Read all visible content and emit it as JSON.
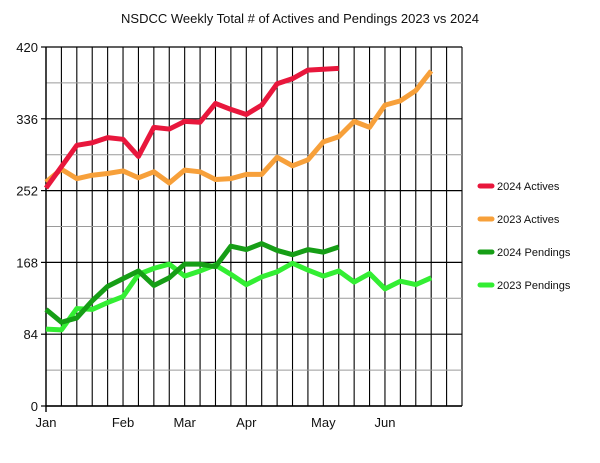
{
  "chart_data": {
    "type": "line",
    "title": "NSDCC Weekly Total # of Actives and Pendings 2023 vs 2024",
    "xlabel": "",
    "ylabel": "",
    "ylim": [
      0,
      420
    ],
    "yticks": [
      0,
      84,
      168,
      252,
      336,
      420
    ],
    "x_weeks": 27,
    "month_labels": [
      {
        "label": "Jan",
        "week": 0
      },
      {
        "label": "Feb",
        "week": 5
      },
      {
        "label": "Mar",
        "week": 9
      },
      {
        "label": "Apr",
        "week": 13
      },
      {
        "label": "May",
        "week": 18
      },
      {
        "label": "Jun",
        "week": 22
      }
    ],
    "grid": true,
    "legend_position": "right",
    "series": [
      {
        "name": "2024 Actives",
        "color": "#e8173c",
        "values": [
          255,
          280,
          305,
          308,
          314,
          312,
          292,
          326,
          324,
          333,
          332,
          354,
          347,
          341,
          352,
          377,
          383,
          393,
          394,
          395
        ]
      },
      {
        "name": "2023 Actives",
        "color": "#f7a03a",
        "values": [
          262,
          277,
          266,
          270,
          272,
          275,
          267,
          274,
          261,
          276,
          274,
          265,
          266,
          271,
          271,
          291,
          281,
          288,
          309,
          315,
          333,
          326,
          352,
          357,
          369,
          392
        ]
      },
      {
        "name": "2024 Pendings",
        "color": "#169e16",
        "values": [
          113,
          98,
          103,
          123,
          140,
          149,
          158,
          141,
          150,
          166,
          166,
          163,
          187,
          183,
          190,
          182,
          177,
          183,
          180,
          186
        ]
      },
      {
        "name": "2023 Pendings",
        "color": "#33ee33",
        "values": [
          90,
          89,
          114,
          113,
          121,
          128,
          154,
          161,
          166,
          152,
          158,
          165,
          154,
          142,
          151,
          157,
          167,
          159,
          152,
          158,
          145,
          155,
          137,
          146,
          142,
          150
        ]
      }
    ]
  }
}
